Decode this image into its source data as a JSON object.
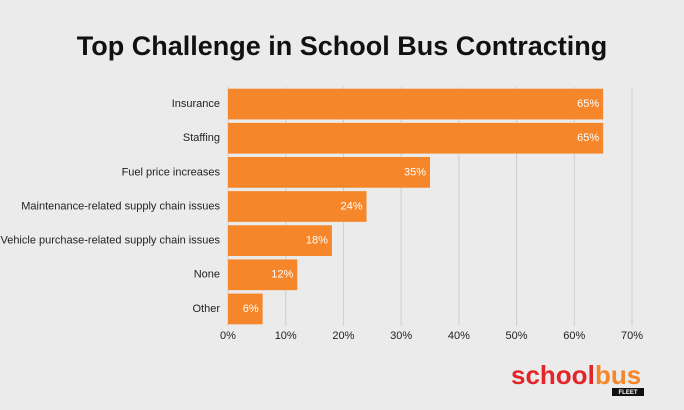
{
  "chart_data": {
    "type": "bar",
    "orientation": "horizontal",
    "title": "Top Challenge in School Bus Contracting",
    "categories": [
      "Insurance",
      "Staffing",
      "Fuel price increases",
      "Maintenance-related supply chain issues",
      "Vehicle purchase-related supply chain issues",
      "None",
      "Other"
    ],
    "values": [
      65,
      65,
      35,
      24,
      18,
      12,
      6
    ],
    "value_labels": [
      "65%",
      "65%",
      "35%",
      "24%",
      "18%",
      "12%",
      "6%"
    ],
    "color": "#f5862a",
    "xlim": [
      0,
      70
    ],
    "xticks": [
      {
        "value": 0,
        "label": "0%"
      },
      {
        "value": 10,
        "label": "10%"
      },
      {
        "value": 20,
        "label": "20%"
      },
      {
        "value": 30,
        "label": "30%"
      },
      {
        "value": 40,
        "label": "40%"
      },
      {
        "value": 50,
        "label": "50%"
      },
      {
        "value": 60,
        "label": "60%"
      },
      {
        "value": 70,
        "label": "70%"
      }
    ],
    "grid": true
  },
  "logo": {
    "part1": "school",
    "part2": "bus",
    "sub": "FLEET"
  }
}
